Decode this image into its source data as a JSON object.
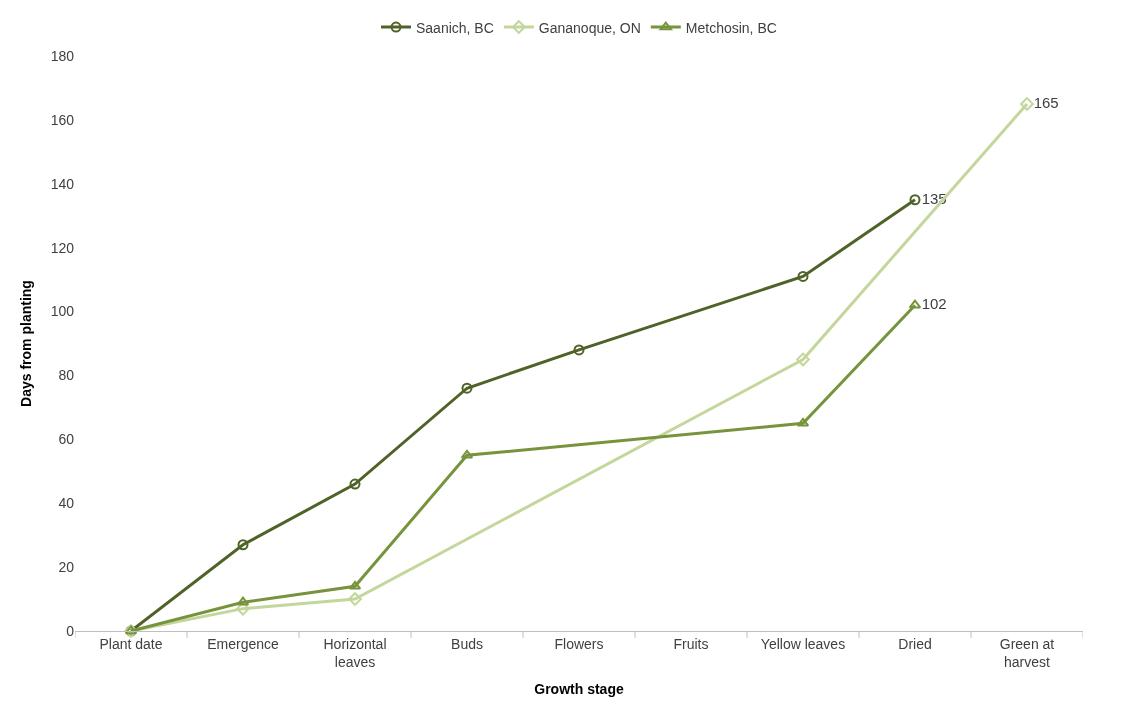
{
  "chart_data": {
    "type": "line",
    "xlabel": "Growth stage",
    "ylabel": "Days from planting",
    "categories": [
      "Plant date",
      "Emergence",
      "Horizontal\nleaves",
      "Buds",
      "Flowers",
      "Fruits",
      "Yellow leaves",
      "Dried",
      "Green at\nharvest"
    ],
    "series": [
      {
        "name": "Saanich, BC",
        "color": "#4f6228",
        "marker": "circle",
        "values": [
          0,
          27,
          46,
          76,
          88,
          null,
          111,
          135,
          null
        ],
        "value_labels": [
          null,
          null,
          null,
          null,
          null,
          null,
          null,
          "135",
          null
        ]
      },
      {
        "name": "Gananoque, ON",
        "color": "#c3d69b",
        "marker": "diamond",
        "values": [
          0,
          7,
          10,
          null,
          null,
          null,
          85,
          null,
          165
        ],
        "value_labels": [
          null,
          null,
          null,
          null,
          null,
          null,
          null,
          null,
          "165"
        ]
      },
      {
        "name": "Metchosin, BC",
        "color": "#77933c",
        "marker": "triangle",
        "values": [
          0,
          9,
          14,
          55,
          null,
          null,
          65,
          102,
          null
        ],
        "value_labels": [
          null,
          null,
          null,
          null,
          null,
          null,
          null,
          "102",
          null
        ]
      }
    ],
    "ylim": [
      0,
      180
    ],
    "yticks": [
      0,
      20,
      40,
      60,
      80,
      100,
      120,
      140,
      160,
      180
    ],
    "grid": false,
    "legend": "top"
  }
}
